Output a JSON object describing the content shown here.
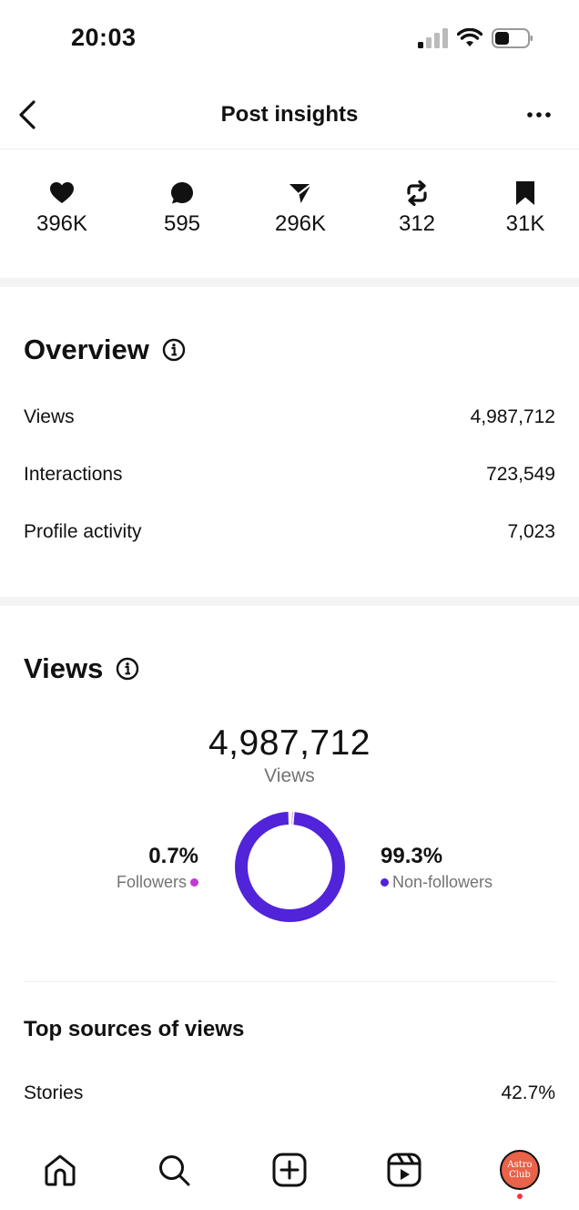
{
  "status_bar": {
    "time": "20:03"
  },
  "nav": {
    "title": "Post insights"
  },
  "stats": [
    {
      "icon": "heart-icon",
      "value": "396K"
    },
    {
      "icon": "comment-icon",
      "value": "595"
    },
    {
      "icon": "share-icon",
      "value": "296K"
    },
    {
      "icon": "repost-icon",
      "value": "312"
    },
    {
      "icon": "bookmark-icon",
      "value": "31K"
    }
  ],
  "overview": {
    "title": "Overview",
    "rows": [
      {
        "label": "Views",
        "value": "4,987,712"
      },
      {
        "label": "Interactions",
        "value": "723,549"
      },
      {
        "label": "Profile activity",
        "value": "7,023"
      }
    ]
  },
  "views": {
    "title": "Views",
    "total": "4,987,712",
    "total_label": "Views",
    "followers_pct": "0.7%",
    "followers_label": "Followers",
    "non_followers_pct": "99.3%",
    "non_followers_label": "Non-followers",
    "followers_fraction": 0.007,
    "colors": {
      "followers": "#c13bd1",
      "non_followers": "#5123d9"
    }
  },
  "top_sources": {
    "title": "Top sources of views",
    "rows": [
      {
        "label": "Stories",
        "value": "42.7%"
      }
    ]
  },
  "tab_bar": {
    "items": [
      "home-icon",
      "search-icon",
      "create-icon",
      "reels-icon",
      "profile-avatar"
    ],
    "avatar_text_line1": "Astro",
    "avatar_text_line2": "Club"
  }
}
